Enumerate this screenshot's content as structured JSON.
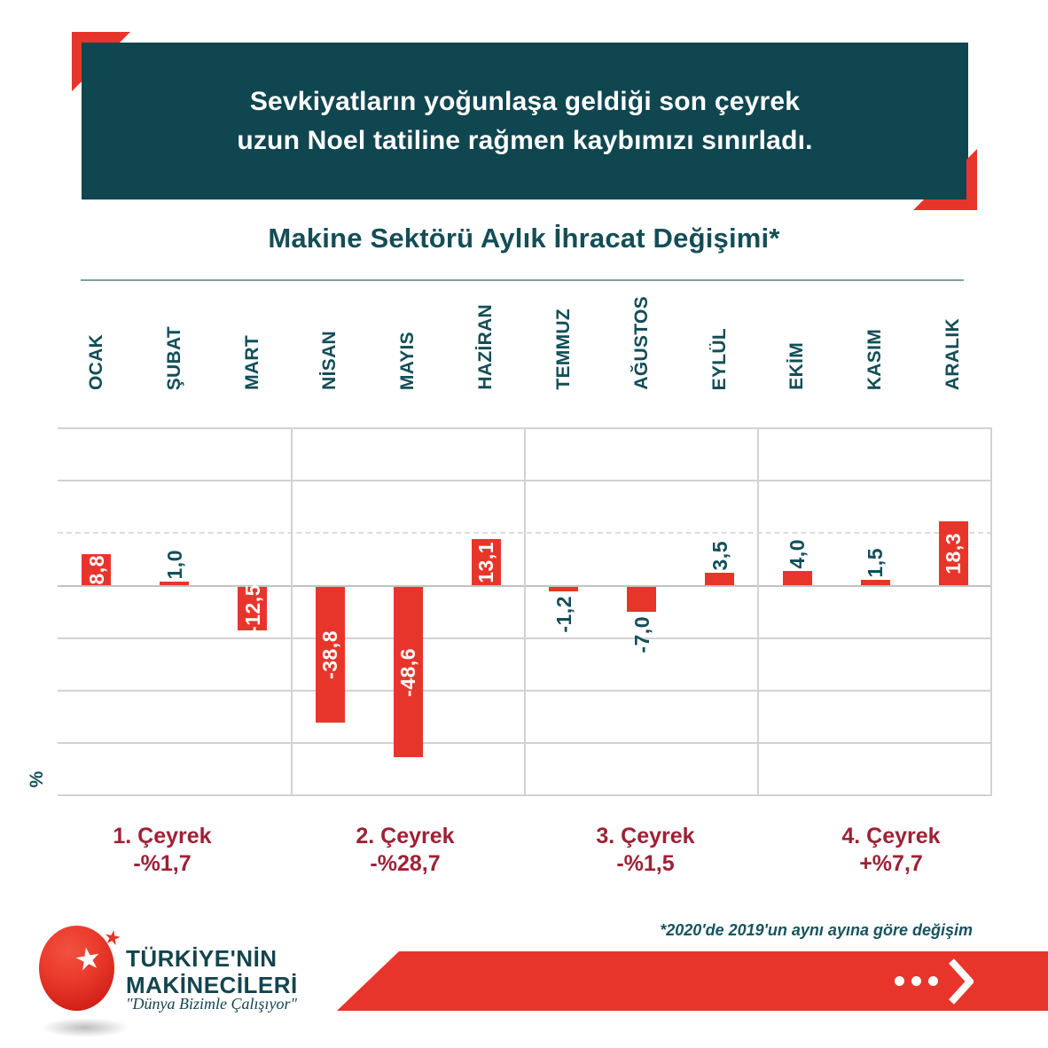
{
  "header": {
    "line1": "Sevkiyatların yoğunlaşa geldiği son çeyrek",
    "line2": "uzun Noel tatiline rağmen kaybımızı sınırladı."
  },
  "chart_data": {
    "type": "bar",
    "title": "Makine Sektörü Aylık İhracat Değişimi*",
    "categories": [
      "OCAK",
      "ŞUBAT",
      "MART",
      "NİSAN",
      "MAYIS",
      "HAZİRAN",
      "TEMMUZ",
      "AĞUSTOS",
      "EYLÜL",
      "EKİM",
      "KASIM",
      "ARALIK"
    ],
    "values": [
      8.8,
      1.0,
      -12.5,
      -38.8,
      -48.6,
      13.1,
      -1.2,
      -7.0,
      3.5,
      4.0,
      1.5,
      18.3
    ],
    "value_labels": [
      "8,8",
      "1,0",
      "-12,5",
      "-38,8",
      "-48,6",
      "13,1",
      "-1,2",
      "-7,0",
      "3,5",
      "4,0",
      "1,5",
      "18,3"
    ],
    "xlabel": "",
    "ylabel": "%",
    "ylim": [
      -60,
      45
    ],
    "gridline_step": 15,
    "grid": true,
    "legend": false,
    "bar_color": "#e8352b",
    "label_inside_color": "#ffffff",
    "label_outside_color": "#134e57"
  },
  "quarters": [
    {
      "label": "1. Çeyrek",
      "change": "-%1,7"
    },
    {
      "label": "2. Çeyrek",
      "change": "-%28,7"
    },
    {
      "label": "3. Çeyrek",
      "change": "-%1,5"
    },
    {
      "label": "4. Çeyrek",
      "change": "+%7,7"
    }
  ],
  "footnote": "*2020'de 2019'un aynı ayına göre değişim",
  "footer": {
    "brand_line1": "TÜRKİYE'NİN",
    "brand_line2": "MAKİNECİLERİ",
    "tagline": "\"Dünya Bizimle Çalışıyor\"",
    "star_glyph": "★"
  },
  "colors": {
    "accent_red": "#e8352b",
    "teal_dark": "#0f4650",
    "teal_text": "#134e57",
    "maroon": "#9e2136",
    "gridline": "#d2d2d2"
  }
}
